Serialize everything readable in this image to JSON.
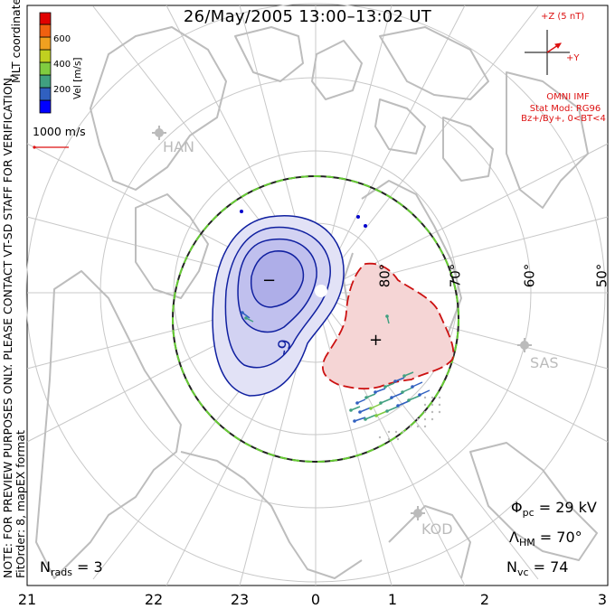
{
  "title": "26/May/2005 13:00–13:02 UT",
  "side_note_line1": "NOTE: FOR PREVIEW PURPOSES ONLY. PLEASE CONTACT VT-SD STAFF FOR VERIFICATION.",
  "side_note_line2": "FitOrder: 8, mapEX format",
  "mlt_coordinates": "MLT coordinates",
  "colorbar": {
    "title": "Vel [m/s]",
    "ticks": [
      "600",
      "400",
      "200"
    ],
    "colors": [
      "#0000ff",
      "#3060c0",
      "#40a080",
      "#80cc40",
      "#c0d020",
      "#f0a020",
      "#f06010",
      "#e00000"
    ]
  },
  "vector_scale": "1000 m/s",
  "imf": {
    "z_label": "+Z (5 nT)",
    "y_label": "+Y",
    "source": "OMNI IMF",
    "model_line1": "Stat Mod: RG96",
    "model_line2": "Bz+/By+, 0<BT<4",
    "color": "#dd1111"
  },
  "stations": [
    "HAN",
    "SAS",
    "KOD"
  ],
  "latitude_labels": [
    "80°",
    "70°",
    "60°",
    "50°"
  ],
  "mlt_ticks": [
    "21",
    "22",
    "23",
    "0",
    "1",
    "2",
    "3"
  ],
  "contour_labels": {
    "neg_sign": "−",
    "pos_sign": "+",
    "neg_value": "-9"
  },
  "stats": {
    "phi_symbol": "Φ",
    "phi_sub": "pc",
    "phi_value": " = 29 kV",
    "lambda_symbol": "Λ",
    "lambda_sub": "HM",
    "lambda_value": " = 70°",
    "nvc_symbol": "N",
    "nvc_sub": "vc",
    "nvc_value": " = 74",
    "nrads_symbol": "N",
    "nrads_sub": "rads",
    "nrads_value": " = 3"
  },
  "colors": {
    "negative_cell_fill": "#c8c8f0",
    "negative_cell_line": "#1020a0",
    "positive_cell_fill": "#f5d5d5",
    "positive_cell_line": "#cc1111",
    "grid": "#c8c8c8",
    "coastline": "#bdbdbd",
    "boundary_green": "#66cc33"
  }
}
